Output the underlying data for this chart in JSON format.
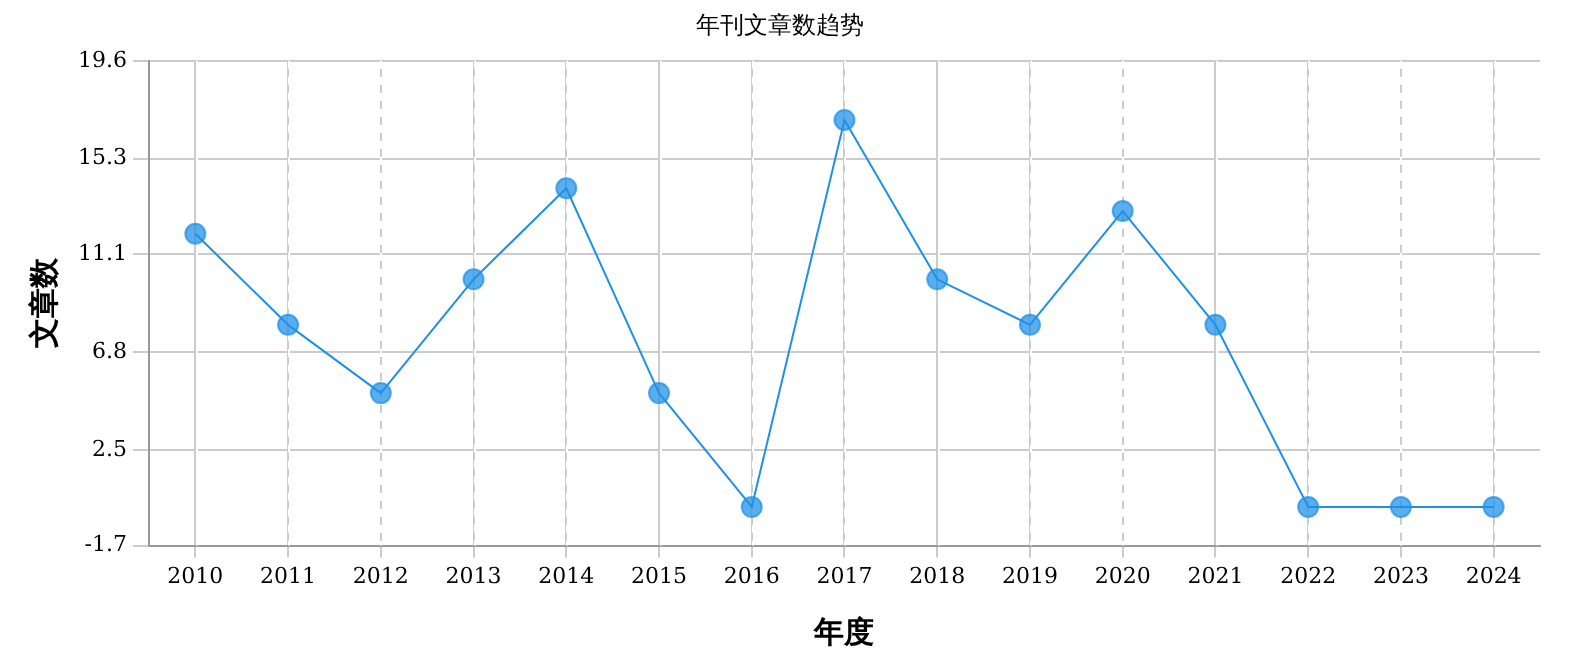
{
  "chart_data": {
    "type": "line",
    "title": "年刊文章数趋势",
    "xlabel": "年度",
    "ylabel": "文章数",
    "categories": [
      "2010",
      "2011",
      "2012",
      "2013",
      "2014",
      "2015",
      "2016",
      "2017",
      "2018",
      "2019",
      "2020",
      "2021",
      "2022",
      "2023",
      "2024"
    ],
    "series": [
      {
        "color": "#1e90e8",
        "values": [
          12,
          8,
          5,
          10,
          14,
          5,
          0,
          17,
          10,
          8,
          13,
          8,
          0,
          0,
          0
        ]
      }
    ],
    "ylim": [
      -1.7,
      19.6
    ],
    "yticks": [
      -1.7,
      2.5,
      6.8,
      11.1,
      15.3,
      19.6
    ],
    "grid": true,
    "legend": false,
    "marker": "circle",
    "line_style": "solid"
  }
}
